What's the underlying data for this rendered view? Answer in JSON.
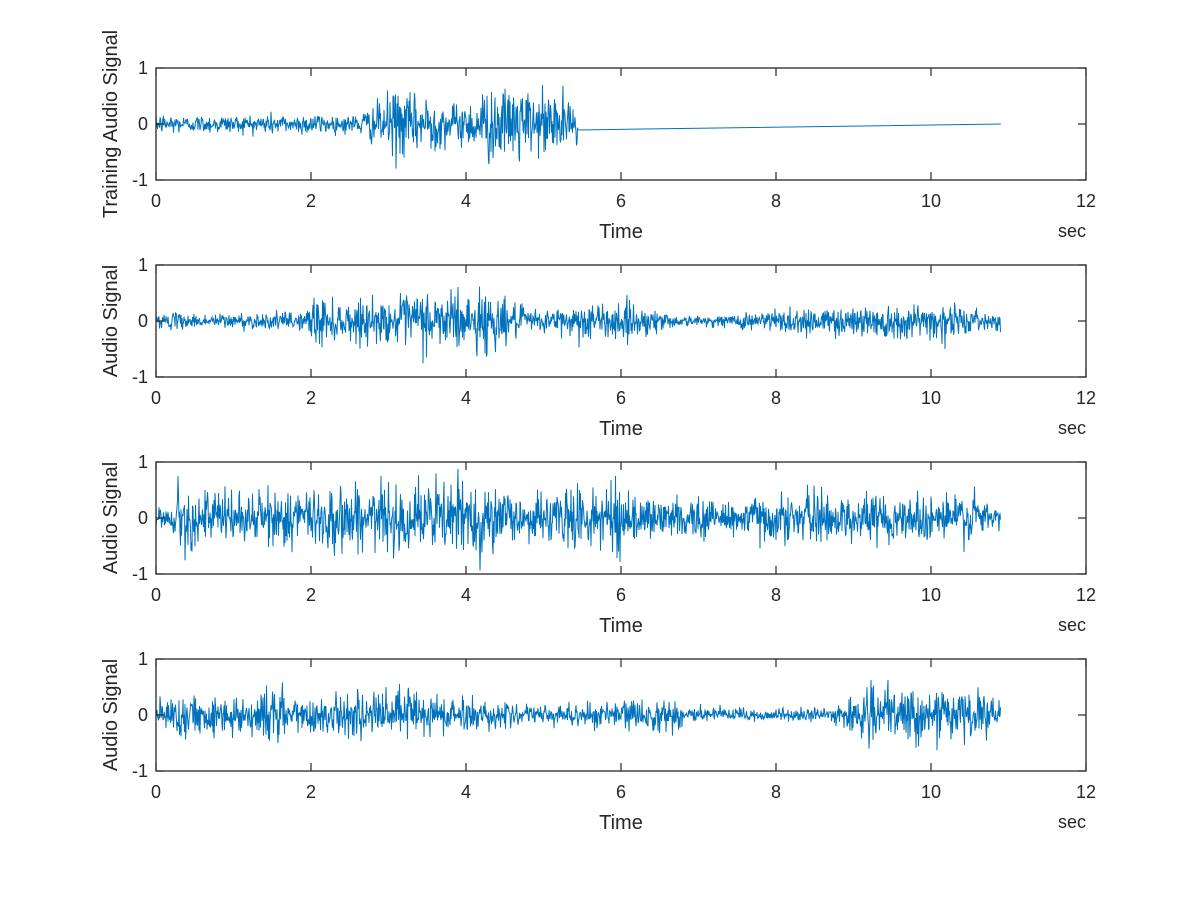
{
  "colors": {
    "line": "#0072BD",
    "axes": "#262626",
    "background": "#ffffff"
  },
  "chart_data": [
    {
      "type": "line",
      "ylabel": "Training Audio Signal",
      "xlabel": "Time",
      "x_unit": "sec",
      "xlim": [
        0,
        12
      ],
      "ylim": [
        -1,
        1
      ],
      "xticks": [
        "0",
        "2",
        "4",
        "6",
        "8",
        "10",
        "12"
      ],
      "yticks": [
        "-1",
        "0",
        "1"
      ],
      "grid": false,
      "duration": 10.9,
      "signal_end": 5.45,
      "envelope": [
        [
          0,
          0.2
        ],
        [
          0.2,
          0.25
        ],
        [
          0.4,
          0.18
        ],
        [
          0.6,
          0.2
        ],
        [
          0.8,
          0.22
        ],
        [
          1.0,
          0.2
        ],
        [
          1.2,
          0.22
        ],
        [
          1.5,
          0.25
        ],
        [
          1.8,
          0.2
        ],
        [
          2.0,
          0.28
        ],
        [
          2.2,
          0.22
        ],
        [
          2.5,
          0.2
        ],
        [
          2.7,
          0.32
        ],
        [
          2.9,
          0.55
        ],
        [
          3.1,
          0.85
        ],
        [
          3.3,
          0.6
        ],
        [
          3.5,
          0.75
        ],
        [
          3.7,
          0.5
        ],
        [
          3.9,
          0.45
        ],
        [
          4.1,
          0.6
        ],
        [
          4.3,
          0.9
        ],
        [
          4.5,
          0.7
        ],
        [
          4.7,
          1.0
        ],
        [
          4.9,
          0.55
        ],
        [
          5.1,
          0.95
        ],
        [
          5.3,
          0.6
        ],
        [
          5.45,
          0.4
        ]
      ]
    },
    {
      "type": "line",
      "ylabel": "Audio Signal",
      "xlabel": "Time",
      "x_unit": "sec",
      "xlim": [
        0,
        12
      ],
      "ylim": [
        -1,
        1
      ],
      "xticks": [
        "0",
        "2",
        "4",
        "6",
        "8",
        "10",
        "12"
      ],
      "yticks": [
        "-1",
        "0",
        "1"
      ],
      "grid": false,
      "duration": 10.9,
      "signal_end": 10.9,
      "envelope": [
        [
          0,
          0.15
        ],
        [
          0.3,
          0.18
        ],
        [
          0.6,
          0.15
        ],
        [
          1.0,
          0.2
        ],
        [
          1.3,
          0.18
        ],
        [
          1.6,
          0.2
        ],
        [
          1.9,
          0.2
        ],
        [
          2.1,
          0.7
        ],
        [
          2.3,
          0.4
        ],
        [
          2.6,
          0.5
        ],
        [
          2.9,
          0.45
        ],
        [
          3.2,
          0.55
        ],
        [
          3.4,
          0.8
        ],
        [
          3.6,
          0.6
        ],
        [
          3.8,
          0.95
        ],
        [
          4.0,
          0.5
        ],
        [
          4.2,
          0.9
        ],
        [
          4.4,
          0.6
        ],
        [
          4.6,
          0.4
        ],
        [
          4.9,
          0.25
        ],
        [
          5.2,
          0.3
        ],
        [
          5.5,
          0.5
        ],
        [
          5.8,
          0.35
        ],
        [
          6.0,
          0.5
        ],
        [
          6.3,
          0.35
        ],
        [
          6.6,
          0.2
        ],
        [
          6.9,
          0.1
        ],
        [
          7.2,
          0.12
        ],
        [
          7.6,
          0.2
        ],
        [
          8.0,
          0.3
        ],
        [
          8.3,
          0.35
        ],
        [
          8.6,
          0.3
        ],
        [
          9.0,
          0.35
        ],
        [
          9.4,
          0.45
        ],
        [
          9.7,
          0.35
        ],
        [
          10.0,
          0.4
        ],
        [
          10.2,
          0.6
        ],
        [
          10.4,
          0.3
        ],
        [
          10.7,
          0.2
        ],
        [
          10.9,
          0.2
        ]
      ]
    },
    {
      "type": "line",
      "ylabel": "Audio Signal",
      "xlabel": "Time",
      "x_unit": "sec",
      "xlim": [
        0,
        12
      ],
      "ylim": [
        -1,
        1
      ],
      "xticks": [
        "0",
        "2",
        "4",
        "6",
        "8",
        "10",
        "12"
      ],
      "yticks": [
        "-1",
        "0",
        "1"
      ],
      "grid": false,
      "duration": 10.9,
      "signal_end": 10.9,
      "envelope": [
        [
          0,
          0.2
        ],
        [
          0.2,
          0.3
        ],
        [
          0.3,
          0.85
        ],
        [
          0.5,
          0.6
        ],
        [
          0.8,
          0.65
        ],
        [
          1.1,
          0.55
        ],
        [
          1.4,
          0.6
        ],
        [
          1.7,
          0.7
        ],
        [
          1.9,
          0.65
        ],
        [
          2.2,
          0.8
        ],
        [
          2.4,
          0.95
        ],
        [
          2.6,
          0.65
        ],
        [
          2.9,
          0.75
        ],
        [
          3.2,
          0.7
        ],
        [
          3.5,
          0.8
        ],
        [
          3.8,
          1.0
        ],
        [
          4.0,
          0.85
        ],
        [
          4.2,
          0.95
        ],
        [
          4.5,
          0.6
        ],
        [
          4.8,
          0.5
        ],
        [
          5.1,
          0.55
        ],
        [
          5.4,
          0.8
        ],
        [
          5.7,
          0.55
        ],
        [
          6.0,
          0.85
        ],
        [
          6.3,
          0.5
        ],
        [
          6.6,
          0.4
        ],
        [
          6.9,
          0.45
        ],
        [
          7.2,
          0.5
        ],
        [
          7.5,
          0.45
        ],
        [
          7.8,
          0.55
        ],
        [
          8.1,
          0.5
        ],
        [
          8.4,
          0.6
        ],
        [
          8.8,
          0.5
        ],
        [
          9.2,
          0.55
        ],
        [
          9.6,
          0.5
        ],
        [
          10.0,
          0.55
        ],
        [
          10.3,
          0.65
        ],
        [
          10.6,
          0.55
        ],
        [
          10.9,
          0.25
        ]
      ]
    },
    {
      "type": "line",
      "ylabel": "Audio Signal",
      "xlabel": "Time",
      "x_unit": "sec",
      "xlim": [
        0,
        12
      ],
      "ylim": [
        -1,
        1
      ],
      "xticks": [
        "0",
        "2",
        "4",
        "6",
        "8",
        "10",
        "12"
      ],
      "yticks": [
        "-1",
        "0",
        "1"
      ],
      "grid": false,
      "duration": 10.9,
      "signal_end": 10.9,
      "envelope": [
        [
          0,
          0.35
        ],
        [
          0.3,
          0.45
        ],
        [
          0.6,
          0.4
        ],
        [
          0.9,
          0.45
        ],
        [
          1.2,
          0.5
        ],
        [
          1.5,
          0.7
        ],
        [
          1.8,
          0.45
        ],
        [
          2.1,
          0.5
        ],
        [
          2.4,
          0.4
        ],
        [
          2.7,
          0.5
        ],
        [
          3.0,
          0.5
        ],
        [
          3.3,
          0.8
        ],
        [
          3.6,
          0.5
        ],
        [
          3.9,
          0.4
        ],
        [
          4.2,
          0.35
        ],
        [
          4.5,
          0.25
        ],
        [
          4.8,
          0.2
        ],
        [
          5.1,
          0.25
        ],
        [
          5.4,
          0.3
        ],
        [
          5.7,
          0.3
        ],
        [
          6.0,
          0.3
        ],
        [
          6.3,
          0.35
        ],
        [
          6.6,
          0.4
        ],
        [
          6.9,
          0.25
        ],
        [
          7.2,
          0.2
        ],
        [
          7.5,
          0.15
        ],
        [
          7.8,
          0.15
        ],
        [
          8.1,
          0.15
        ],
        [
          8.4,
          0.15
        ],
        [
          8.8,
          0.2
        ],
        [
          9.1,
          0.5
        ],
        [
          9.3,
          0.7
        ],
        [
          9.6,
          0.55
        ],
        [
          9.9,
          0.6
        ],
        [
          10.2,
          0.65
        ],
        [
          10.5,
          0.5
        ],
        [
          10.7,
          0.55
        ],
        [
          10.9,
          0.3
        ]
      ]
    }
  ]
}
